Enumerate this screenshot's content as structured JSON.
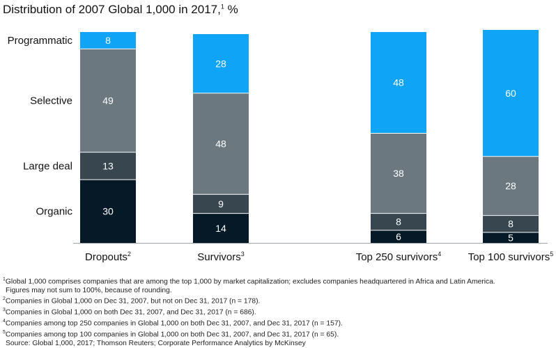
{
  "title": "Distribution of 2007 Global 1,000 in 2017,",
  "title_sup": "1",
  "title_unit": " %",
  "colors": {
    "Programmatic": "#0fa4f5",
    "Selective": "#6b7880",
    "Large deal": "#37464f",
    "Organic": "#061927"
  },
  "chart_data": {
    "type": "bar",
    "stacked": true,
    "title": "Distribution of 2007 Global 1,000 in 2017, %",
    "categories": [
      {
        "label": "Dropouts",
        "sup": "2"
      },
      {
        "label": "Survivors",
        "sup": "3"
      },
      {
        "label": "Top 250 survivors",
        "sup": "4"
      },
      {
        "label": "Top 100 survivors",
        "sup": "5"
      }
    ],
    "series": [
      {
        "name": "Organic",
        "values": [
          30,
          14,
          6,
          5
        ]
      },
      {
        "name": "Large deal",
        "values": [
          13,
          9,
          8,
          8
        ]
      },
      {
        "name": "Selective",
        "values": [
          49,
          48,
          38,
          28
        ]
      },
      {
        "name": "Programmatic",
        "values": [
          8,
          28,
          48,
          60
        ]
      }
    ],
    "ylim": [
      0,
      100
    ],
    "legend": "left",
    "grid": false
  },
  "footnotes": [
    {
      "sup": "1",
      "text": "Global 1,000 comprises companies that are among the top 1,000 by market capitalization; excludes companies headquartered in Africa and Latin America."
    },
    {
      "sup": "",
      "text": "Figures may not sum to 100%, because of rounding."
    },
    {
      "sup": "2",
      "text": "Companies in Global 1,000 on Dec 31, 2007, but not on Dec 31, 2017 (n = 178)."
    },
    {
      "sup": "3",
      "text": "Companies in Global 1,000 on both Dec 31, 2007, and Dec 31, 2017 (n = 686)."
    },
    {
      "sup": "4",
      "text": "Companies among top 250 companies in Global 1,000 on both Dec 31, 2007, and Dec 31, 2017 (n = 157)."
    },
    {
      "sup": "5",
      "text": "Companies among top 100 companies in Global 1,000 on both Dec 31, 2007, and Dec 31, 2017 (n = 65)."
    },
    {
      "sup": "",
      "text": "Source: Global 1,000, 2017; Thomson Reuters; Corporate Performance Analytics by McKinsey"
    }
  ]
}
